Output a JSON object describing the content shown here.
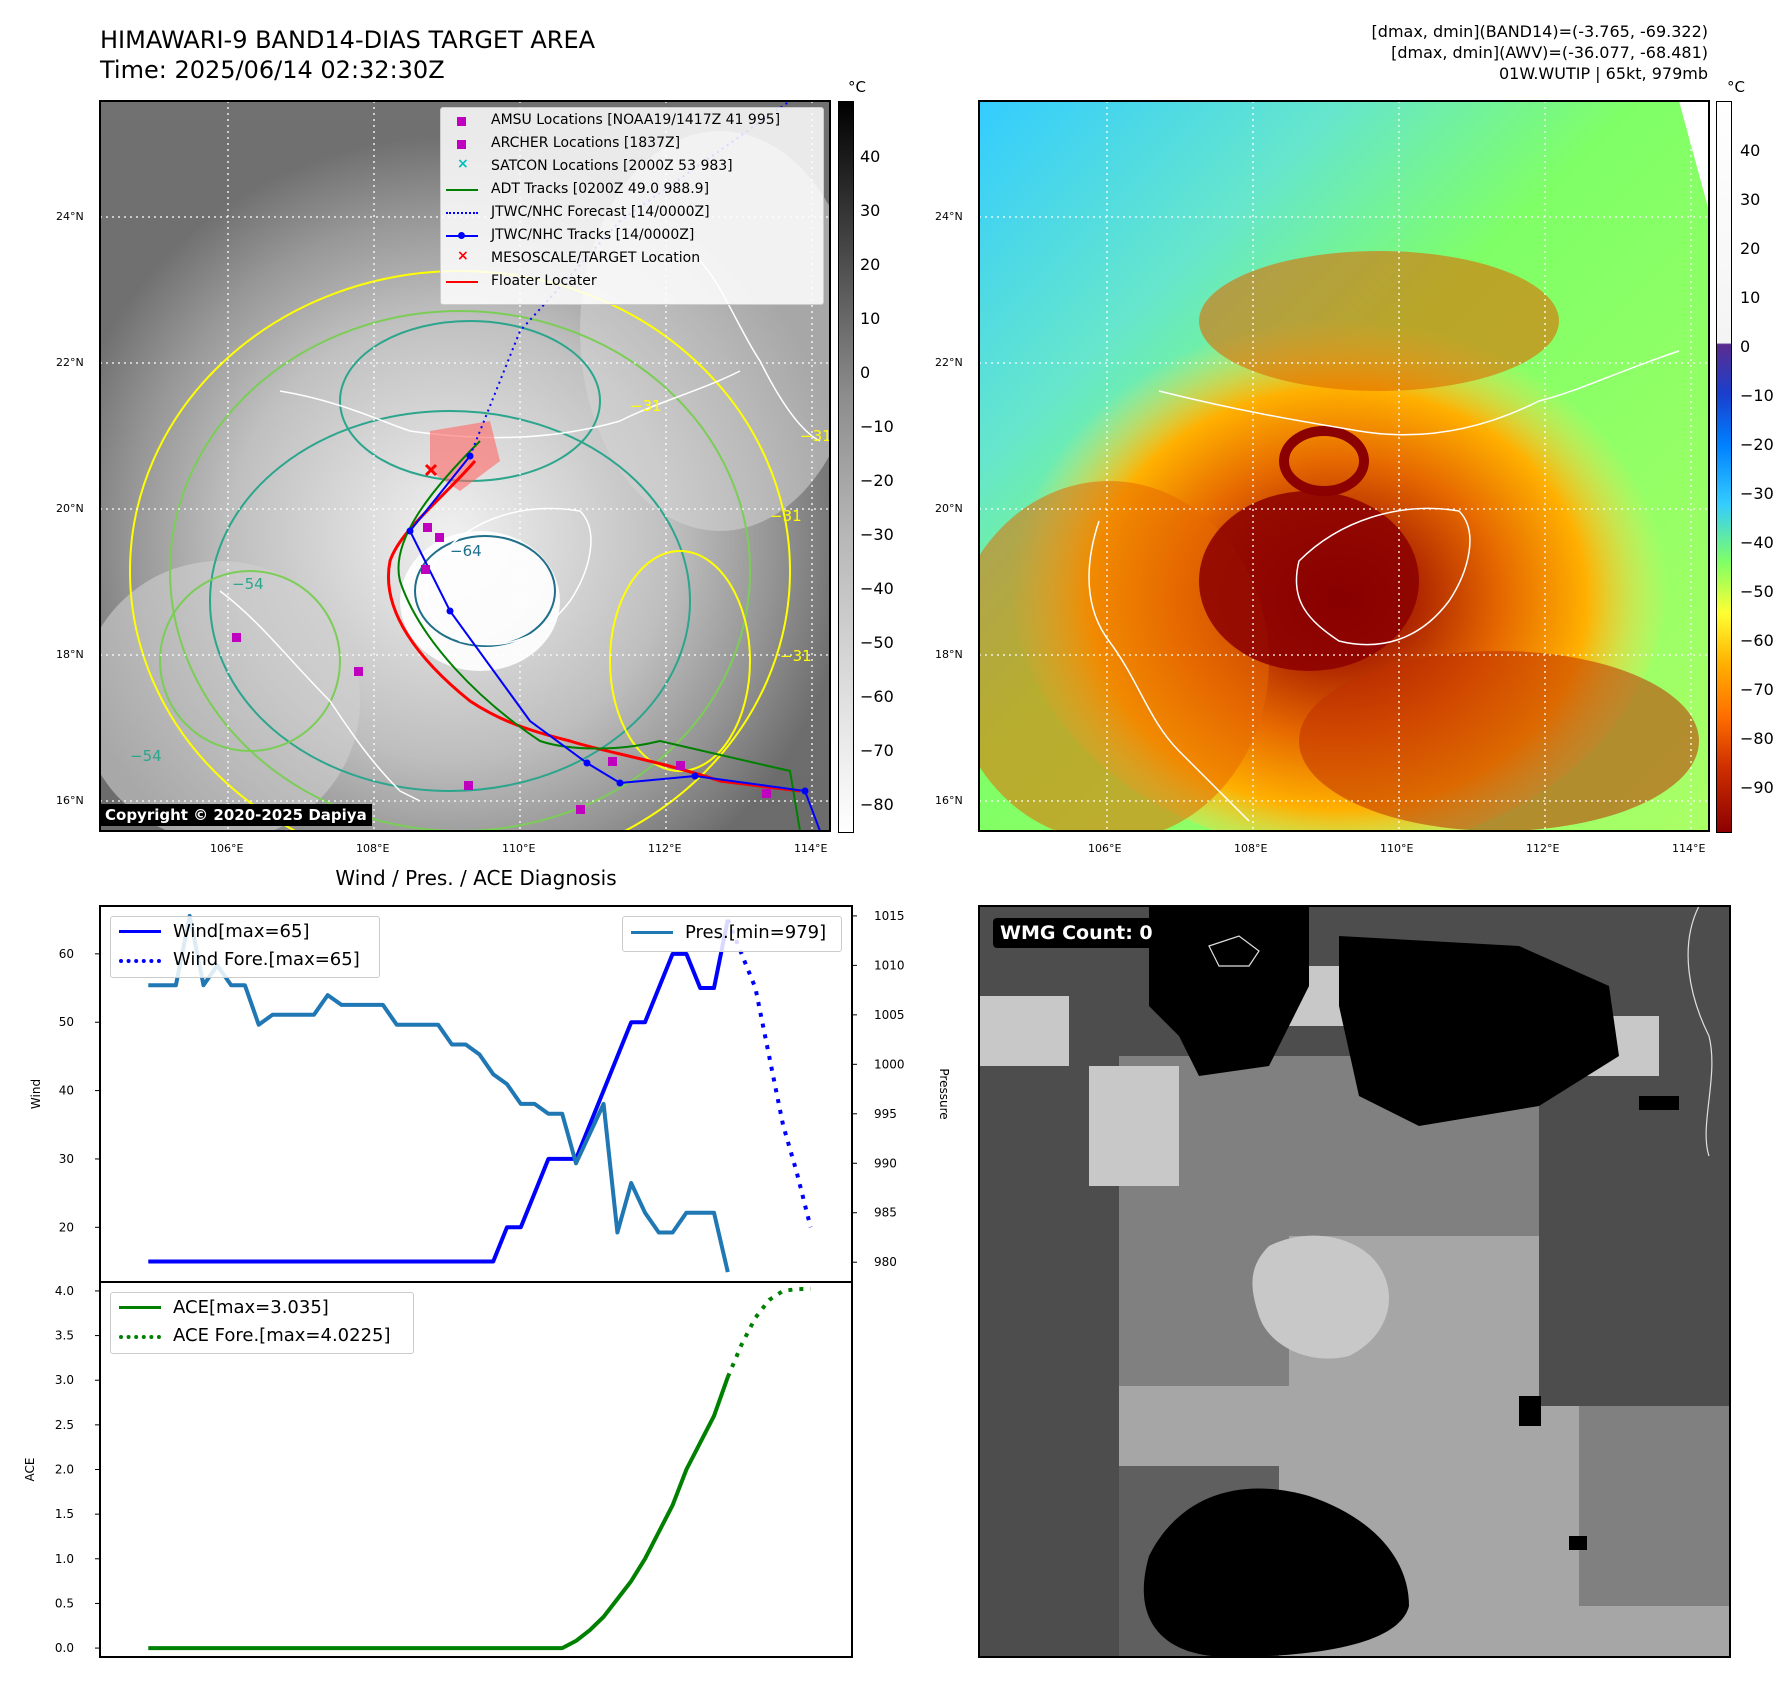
{
  "header": {
    "title_line1": "HIMAWARI-9 BAND14-DIAS TARGET AREA",
    "title_line2": "Time: 2025/06/14 02:32:30Z",
    "stats_line1": "[dmax, dmin](BAND14)=(-3.765, -69.322)",
    "stats_line2": "[dmax, dmin](AWV)=(-36.077, -68.481)",
    "stats_line3": "01W.WUTIP | 65kt, 979mb"
  },
  "map_ir": {
    "lat_labels": [
      "24°N",
      "22°N",
      "20°N",
      "18°N",
      "16°N"
    ],
    "lon_labels": [
      "106°E",
      "108°E",
      "110°E",
      "112°E",
      "114°E"
    ],
    "colorbar_unit": "°C",
    "colorbar_ticks": [
      "40",
      "30",
      "20",
      "10",
      "0",
      "−10",
      "−20",
      "−30",
      "−40",
      "−50",
      "−60",
      "−70",
      "−80"
    ],
    "contour_labels": [
      "−64",
      "−54",
      "−31",
      "−31",
      "−31",
      "−54",
      "−31"
    ],
    "copyright": "Copyright © 2020-2025 Dapiya",
    "legend": [
      {
        "label": "AMSU Locations [NOAA19/1417Z 41 995]",
        "symbol": "square",
        "color": "#bf00bf"
      },
      {
        "label": "ARCHER Locations [1837Z]",
        "symbol": "square",
        "color": "#bf00bf"
      },
      {
        "label": "SATCON Locations [2000Z 53 983]",
        "symbol": "x",
        "color": "#00bfbf"
      },
      {
        "label": "ADT Tracks [0200Z 49.0 988.9]",
        "symbol": "line",
        "color": "#008000"
      },
      {
        "label": "JTWC/NHC Forecast [14/0000Z]",
        "symbol": "dotted",
        "color": "#0000ff"
      },
      {
        "label": "JTWC/NHC Tracks [14/0000Z]",
        "symbol": "line-dot",
        "color": "#0000ff"
      },
      {
        "label": "MESOSCALE/TARGET Location",
        "symbol": "x",
        "color": "#ff0000"
      },
      {
        "label": "Floater Locater",
        "symbol": "line",
        "color": "#ff0000"
      }
    ]
  },
  "map_awv": {
    "lat_labels": [
      "24°N",
      "22°N",
      "20°N",
      "18°N",
      "16°N"
    ],
    "lon_labels": [
      "106°E",
      "108°E",
      "110°E",
      "112°E",
      "114°E"
    ],
    "colorbar_unit": "°C",
    "colorbar_ticks": [
      "40",
      "30",
      "20",
      "10",
      "0",
      "−10",
      "−20",
      "−30",
      "−40",
      "−50",
      "−60",
      "−70",
      "−80",
      "−90"
    ]
  },
  "wmg_panel": {
    "label": "WMG Count: 0"
  },
  "colors": {
    "wind": "#0000ff",
    "pressure": "#1f77b4",
    "ace": "#008000",
    "awv_warm": "#8b0000",
    "awv_mid": "#7fff66"
  },
  "chart_data": [
    {
      "type": "line",
      "title": "Wind / Pres. / ACE Diagnosis",
      "ylabel": "Wind",
      "ylabel_right": "Pressure",
      "ylim": [
        12,
        67
      ],
      "ylim_right": [
        978,
        1016
      ],
      "yticks": [
        "20",
        "30",
        "40",
        "50",
        "60"
      ],
      "yticks_right": [
        "980",
        "985",
        "990",
        "995",
        "1000",
        "1005",
        "1010",
        "1015"
      ],
      "x": [
        0,
        1,
        2,
        3,
        4,
        5,
        6,
        7,
        8,
        9,
        10,
        11,
        12,
        13,
        14,
        15,
        16,
        17,
        18,
        19,
        20,
        21,
        22,
        23,
        24,
        25,
        26,
        27,
        28,
        29,
        30,
        31,
        32,
        33,
        34,
        35,
        36,
        37,
        38,
        39,
        40,
        41,
        42,
        43,
        44,
        45,
        46,
        47,
        48,
        49,
        50
      ],
      "series": [
        {
          "name": "Wind[max=65]",
          "style": "solid",
          "axis": "left",
          "x": [
            0,
            1,
            2,
            3,
            4,
            5,
            6,
            7,
            8,
            9,
            10,
            11,
            12,
            13,
            14,
            15,
            16,
            17,
            18,
            19,
            20,
            21,
            22,
            23,
            24,
            25,
            26,
            27,
            28,
            29,
            30,
            31,
            32,
            33,
            34,
            35,
            36,
            37,
            38,
            39,
            40,
            41,
            42
          ],
          "values": [
            15,
            15,
            15,
            15,
            15,
            15,
            15,
            15,
            15,
            15,
            15,
            15,
            15,
            15,
            15,
            15,
            15,
            15,
            15,
            15,
            15,
            15,
            15,
            15,
            15,
            15,
            20,
            20,
            25,
            30,
            30,
            30,
            35,
            40,
            45,
            50,
            50,
            55,
            60,
            60,
            55,
            55,
            65
          ]
        },
        {
          "name": "Wind Fore.[max=65]",
          "style": "dotted",
          "axis": "left",
          "x": [
            42,
            43,
            44,
            45,
            46,
            47,
            48
          ],
          "values": [
            65,
            60,
            55,
            45,
            35,
            28,
            20
          ]
        },
        {
          "name": "Pres.[min=979]",
          "style": "solid",
          "axis": "right",
          "x": [
            0,
            1,
            2,
            3,
            4,
            5,
            6,
            7,
            8,
            9,
            10,
            11,
            12,
            13,
            14,
            15,
            16,
            17,
            18,
            19,
            20,
            21,
            22,
            23,
            24,
            25,
            26,
            27,
            28,
            29,
            30,
            31,
            32,
            33,
            34,
            35,
            36,
            37,
            38,
            39,
            40,
            41,
            42
          ],
          "values": [
            1008,
            1008,
            1008,
            1015,
            1008,
            1010,
            1008,
            1008,
            1004,
            1005,
            1005,
            1005,
            1005,
            1007,
            1006,
            1006,
            1006,
            1006,
            1004,
            1004,
            1004,
            1004,
            1002,
            1002,
            1001,
            999,
            998,
            996,
            996,
            995,
            995,
            990,
            993,
            996,
            983,
            988,
            985,
            983,
            983,
            985,
            985,
            985,
            979
          ]
        }
      ]
    },
    {
      "type": "line",
      "ylabel": "ACE",
      "ylim": [
        -0.1,
        4.1
      ],
      "yticks": [
        "0.0",
        "0.5",
        "1.0",
        "1.5",
        "2.0",
        "2.5",
        "3.0",
        "3.5",
        "4.0"
      ],
      "series": [
        {
          "name": "ACE[max=3.035]",
          "style": "solid",
          "x": [
            0,
            1,
            2,
            3,
            4,
            5,
            6,
            7,
            8,
            9,
            10,
            11,
            12,
            13,
            14,
            15,
            16,
            17,
            18,
            19,
            20,
            21,
            22,
            23,
            24,
            25,
            26,
            27,
            28,
            29,
            30,
            31,
            32,
            33,
            34,
            35,
            36,
            37,
            38,
            39,
            40,
            41,
            42
          ],
          "values": [
            0,
            0,
            0,
            0,
            0,
            0,
            0,
            0,
            0,
            0,
            0,
            0,
            0,
            0,
            0,
            0,
            0,
            0,
            0,
            0,
            0,
            0,
            0,
            0,
            0,
            0,
            0,
            0,
            0,
            0,
            0,
            0.08,
            0.2,
            0.35,
            0.55,
            0.75,
            1.0,
            1.3,
            1.6,
            2.0,
            2.3,
            2.6,
            3.035
          ]
        },
        {
          "name": "ACE Fore.[max=4.0225]",
          "style": "dotted",
          "x": [
            42,
            43,
            44,
            45,
            46,
            47,
            48
          ],
          "values": [
            3.035,
            3.4,
            3.7,
            3.9,
            4.0,
            4.02,
            4.0225
          ]
        }
      ]
    }
  ]
}
